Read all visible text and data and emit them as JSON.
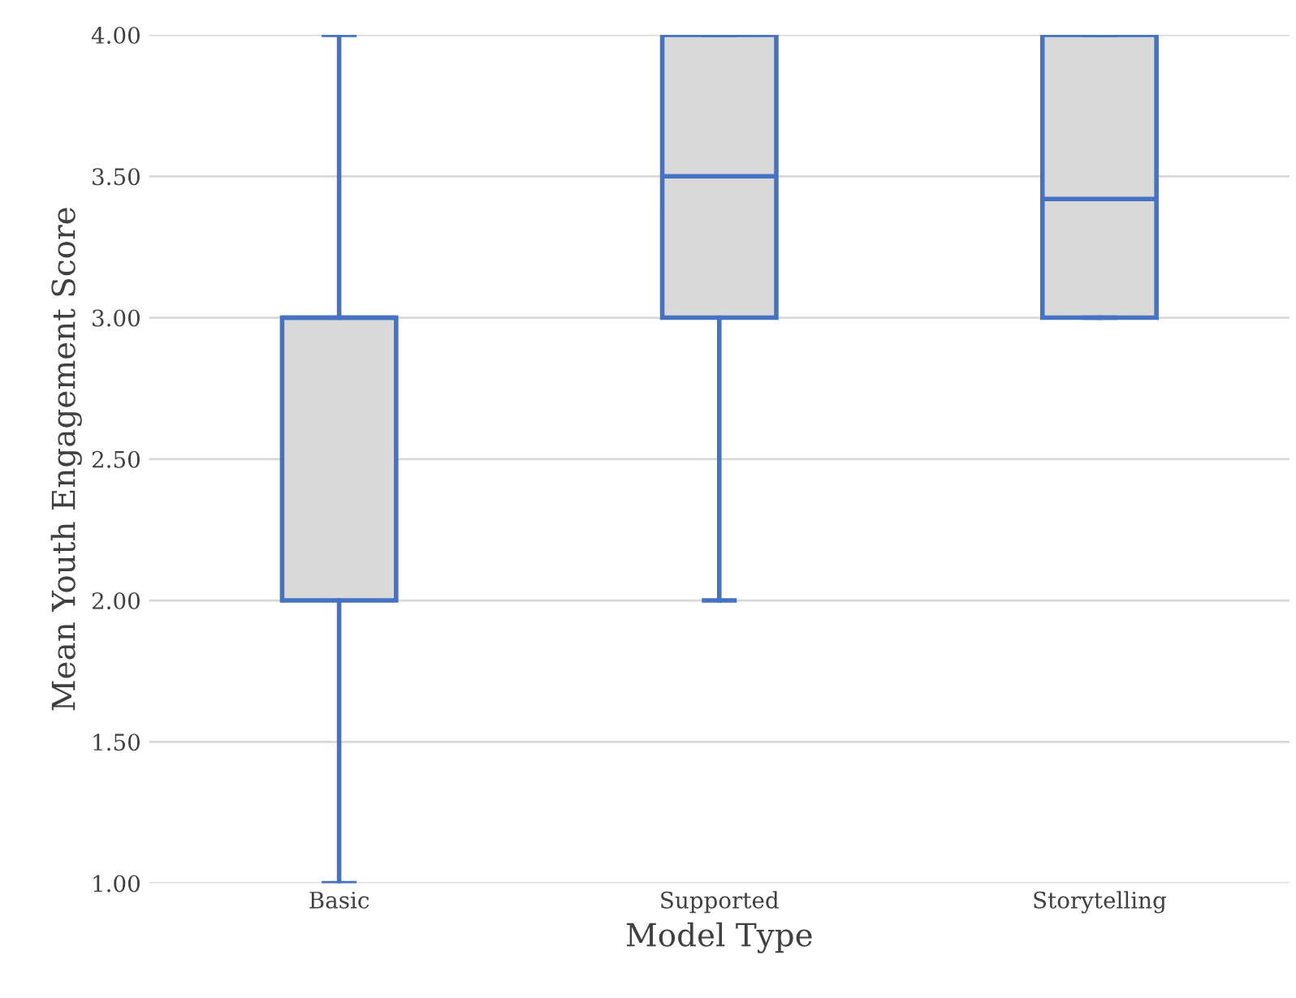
{
  "chart_data": {
    "type": "box",
    "xlabel": "Model Type",
    "ylabel": "Mean Youth Engagement Score",
    "categories": [
      "Basic",
      "Supported",
      "Storytelling"
    ],
    "boxes": [
      {
        "low": 1.0,
        "q1": 2.0,
        "median": 3.0,
        "q3": 3.0,
        "high": 4.0
      },
      {
        "low": 2.0,
        "q1": 3.0,
        "median": 3.5,
        "q3": 4.0,
        "high": 4.0
      },
      {
        "low": 3.0,
        "q1": 3.0,
        "median": 3.42,
        "q3": 4.0,
        "high": 4.0
      }
    ],
    "color": "#4472c4",
    "ylim": [
      1.0,
      4.0
    ],
    "yticks": [
      {
        "value": 1.0,
        "label": "1.00"
      },
      {
        "value": 1.5,
        "label": "1.50"
      },
      {
        "value": 2.0,
        "label": "2.00"
      },
      {
        "value": 2.5,
        "label": "2.50"
      },
      {
        "value": 3.0,
        "label": "3.00"
      },
      {
        "value": 3.5,
        "label": "3.50"
      },
      {
        "value": 4.0,
        "label": "4.00"
      }
    ],
    "grid": "y"
  }
}
